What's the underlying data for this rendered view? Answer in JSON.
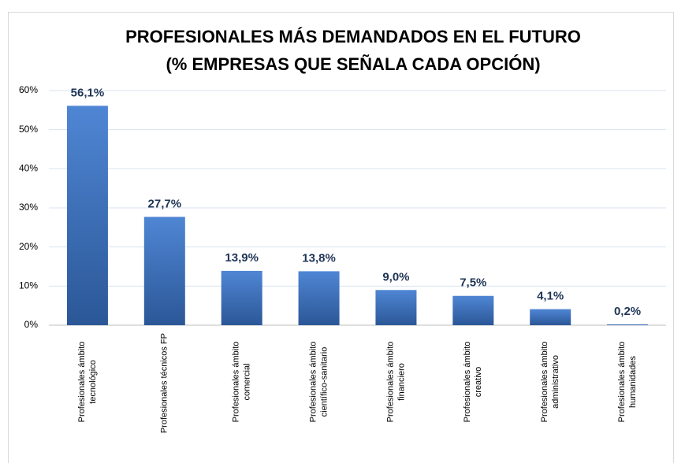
{
  "chart_data": {
    "type": "bar",
    "title": "PROFESIONALES MÁS DEMANDADOS EN EL FUTURO",
    "subtitle": "(% EMPRESAS QUE SEÑALA CADA OPCIÓN)",
    "categories": [
      [
        "Profesionales ámbito",
        "tecnológico"
      ],
      [
        "Profesionales técnicos FP"
      ],
      [
        "Profesionales ámbito",
        "comercial"
      ],
      [
        "Profesionales ámbito",
        "científico-sanitario"
      ],
      [
        "Profesionales ámbito",
        "financiero"
      ],
      [
        "Profesionales ámbito",
        "creativo"
      ],
      [
        "Profesionales ámbito",
        "administrativo"
      ],
      [
        "Profesionales ámbito",
        "humanidades"
      ]
    ],
    "values": [
      56.1,
      27.7,
      13.9,
      13.8,
      9.0,
      7.5,
      4.1,
      0.2
    ],
    "value_labels": [
      "56,1%",
      "27,7%",
      "13,9%",
      "13,8%",
      "9,0%",
      "7,5%",
      "4,1%",
      "0,2%"
    ],
    "color": "#3a6cb8",
    "ylim": [
      0,
      60
    ],
    "yticks": [
      {
        "value": 0,
        "label": "0%"
      },
      {
        "value": 10,
        "label": "10%"
      },
      {
        "value": 20,
        "label": "20%"
      },
      {
        "value": 30,
        "label": "30%"
      },
      {
        "value": 40,
        "label": "40%"
      },
      {
        "value": 50,
        "label": "50%"
      },
      {
        "value": 60,
        "label": "60%"
      }
    ],
    "grid": true
  }
}
